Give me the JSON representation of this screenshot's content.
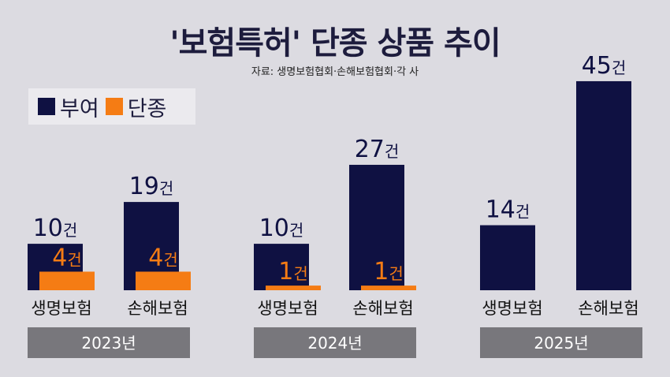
{
  "title": "'보험특허' 단종 상품 추이",
  "source": "자료: 생명보험협회·손해보험협회·각 사",
  "colors": {
    "부여": "#0f1142",
    "단종": "#f57c14",
    "year_box": "#78777c"
  },
  "chart_data": {
    "type": "bar",
    "title": "'보험특허' 단종 상품 추이",
    "legend": {
      "position": "top-left",
      "entries": [
        "부여",
        "단종"
      ]
    },
    "unit": "건",
    "groups": [
      "2023년",
      "2024년",
      "2025년"
    ],
    "categories": [
      "생명보험",
      "손해보험",
      "생명보험",
      "손해보험",
      "생명보험",
      "손해보험"
    ],
    "series": [
      {
        "name": "부여",
        "values": [
          10,
          19,
          10,
          27,
          14,
          45
        ]
      },
      {
        "name": "단종",
        "values": [
          4,
          4,
          1,
          1,
          null,
          null
        ]
      }
    ],
    "grid": false
  }
}
